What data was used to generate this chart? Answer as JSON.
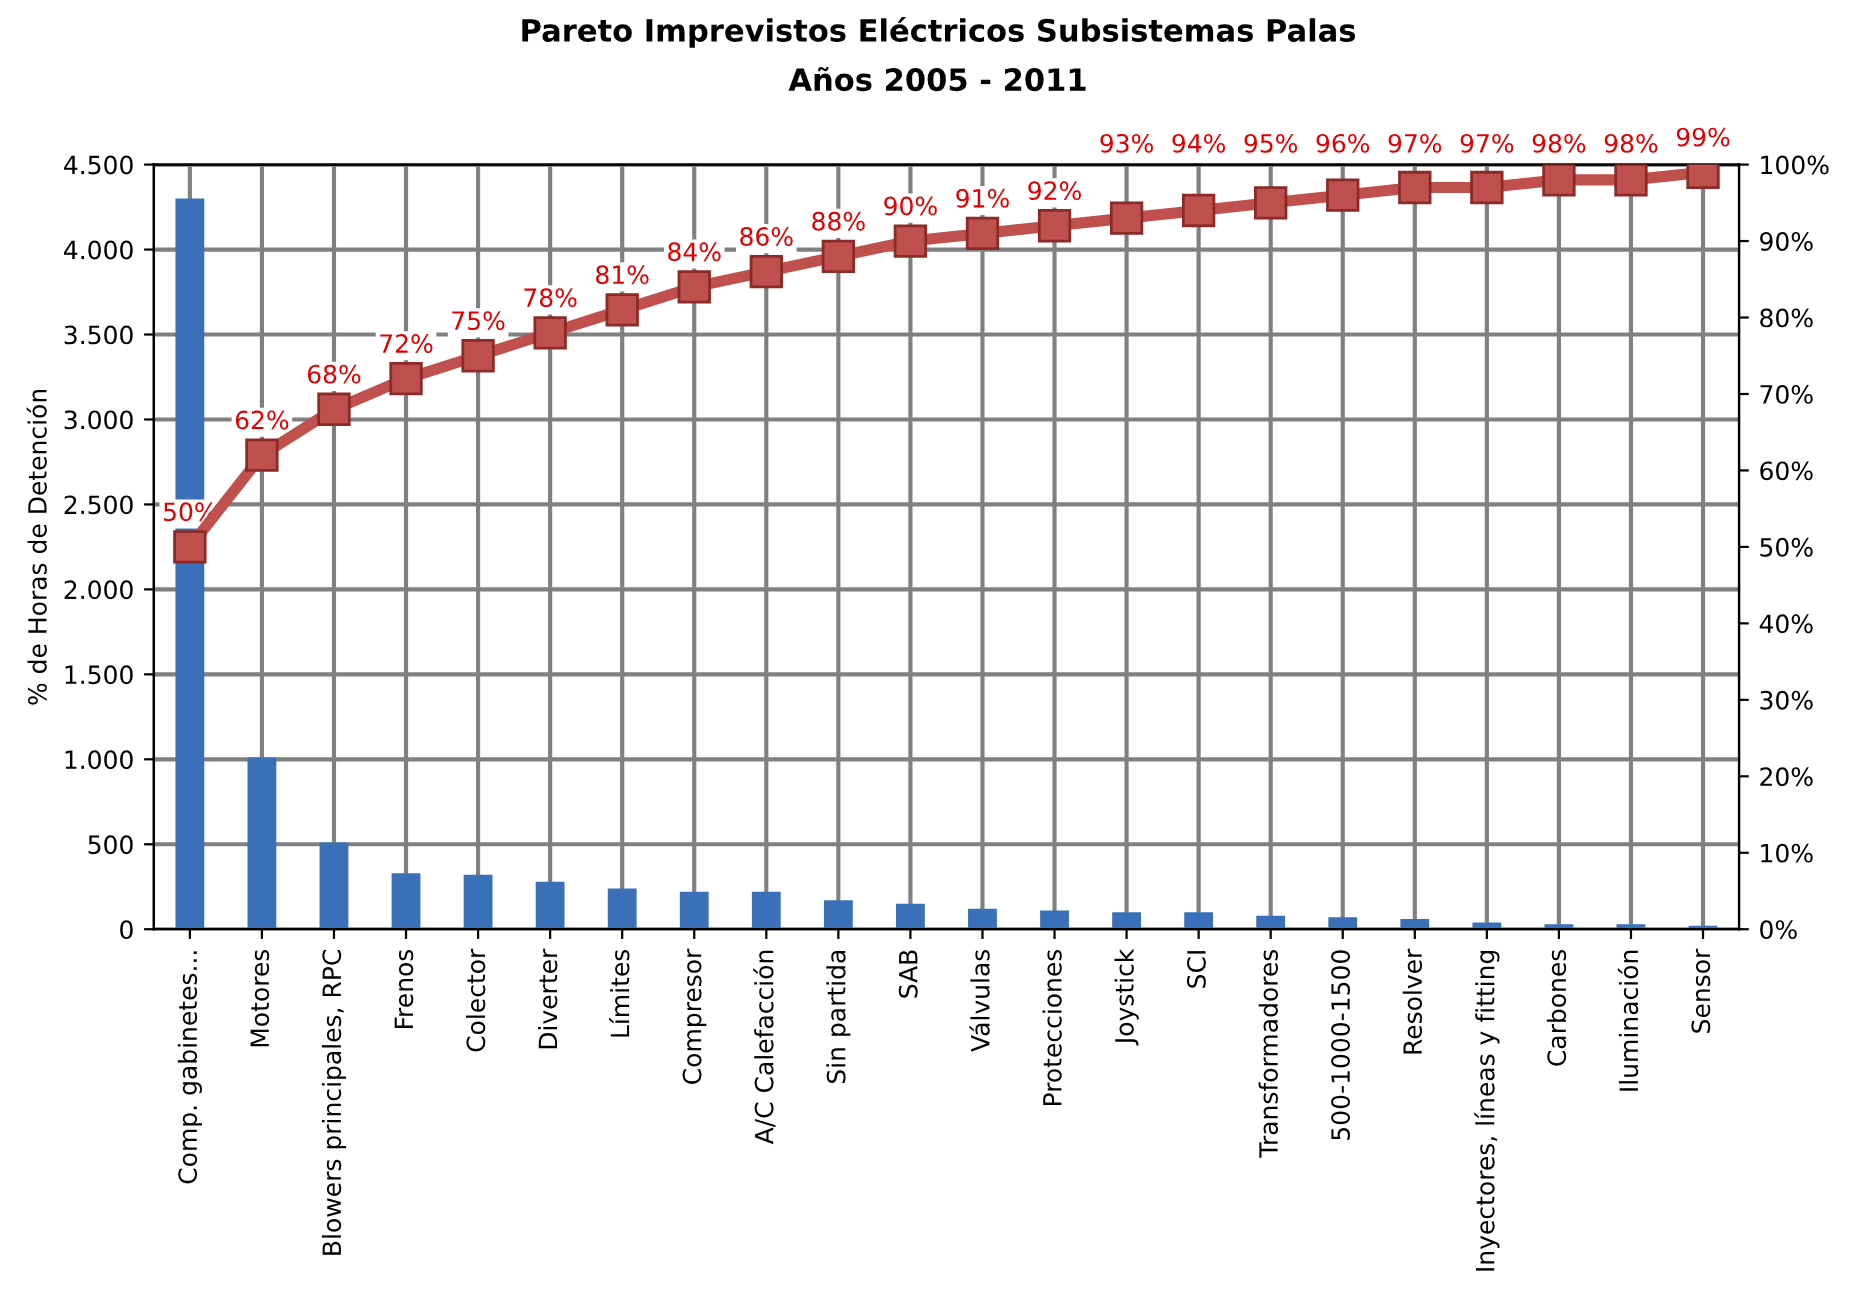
{
  "chart_data": {
    "type": "bar",
    "title": "Pareto Imprevistos Eléctricos Subsistemas Palas",
    "subtitle": "Años 2005 - 2011",
    "ylabel": "% de Horas de Detención",
    "categories": [
      "Comp. gabinetes...",
      "Motores",
      "Blowers principales, RPC",
      "Frenos",
      "Colector",
      "Diverter",
      "Límites",
      "Compresor",
      "A/C Calefacción",
      "Sin partida",
      "SAB",
      "Válvulas",
      "Protecciones",
      "Joystick",
      "SCI",
      "Transformadores",
      "500-1000-1500",
      "Resolver",
      "Inyectores, líneas y fitting",
      "Carbones",
      "Iluminación",
      "Sensor"
    ],
    "series": [
      {
        "color": "#3a70b8",
        "values": [
          4300,
          1010,
          510,
          330,
          320,
          280,
          240,
          220,
          220,
          170,
          150,
          120,
          110,
          100,
          100,
          80,
          70,
          60,
          40,
          30,
          30,
          20
        ]
      },
      {
        "type": "line",
        "axis": "y2",
        "color": "#c0504d",
        "marker": "square",
        "line_style": "solid",
        "values": [
          50,
          62,
          68,
          72,
          75,
          78,
          81,
          84,
          86,
          88,
          90,
          91,
          92,
          93,
          94,
          95,
          96,
          97,
          97,
          98,
          98,
          99
        ],
        "value_labels": [
          "50%",
          "62%",
          "68%",
          "72%",
          "75%",
          "78%",
          "81%",
          "84%",
          "86%",
          "88%",
          "90%",
          "91%",
          "92%",
          "93%",
          "94%",
          "95%",
          "96%",
          "97%",
          "97%",
          "98%",
          "98%",
          "99%"
        ]
      }
    ],
    "ylim": [
      0,
      4500
    ],
    "yticks": [
      {
        "value": 0,
        "label": "0"
      },
      {
        "value": 500,
        "label": "500"
      },
      {
        "value": 1000,
        "label": "1.000"
      },
      {
        "value": 1500,
        "label": "1.500"
      },
      {
        "value": 2000,
        "label": "2.000"
      },
      {
        "value": 2500,
        "label": "2.500"
      },
      {
        "value": 3000,
        "label": "3.000"
      },
      {
        "value": 3500,
        "label": "3.500"
      },
      {
        "value": 4000,
        "label": "4.000"
      },
      {
        "value": 4500,
        "label": "4.500"
      }
    ],
    "y2lim": [
      0,
      100
    ],
    "y2ticks": [
      {
        "value": 0,
        "label": "0%"
      },
      {
        "value": 10,
        "label": "10%"
      },
      {
        "value": 20,
        "label": "20%"
      },
      {
        "value": 30,
        "label": "30%"
      },
      {
        "value": 40,
        "label": "40%"
      },
      {
        "value": 50,
        "label": "50%"
      },
      {
        "value": 60,
        "label": "60%"
      },
      {
        "value": 70,
        "label": "70%"
      },
      {
        "value": 80,
        "label": "80%"
      },
      {
        "value": 90,
        "label": "90%"
      },
      {
        "value": 100,
        "label": "100%"
      }
    ],
    "grid": true,
    "legend": false
  }
}
